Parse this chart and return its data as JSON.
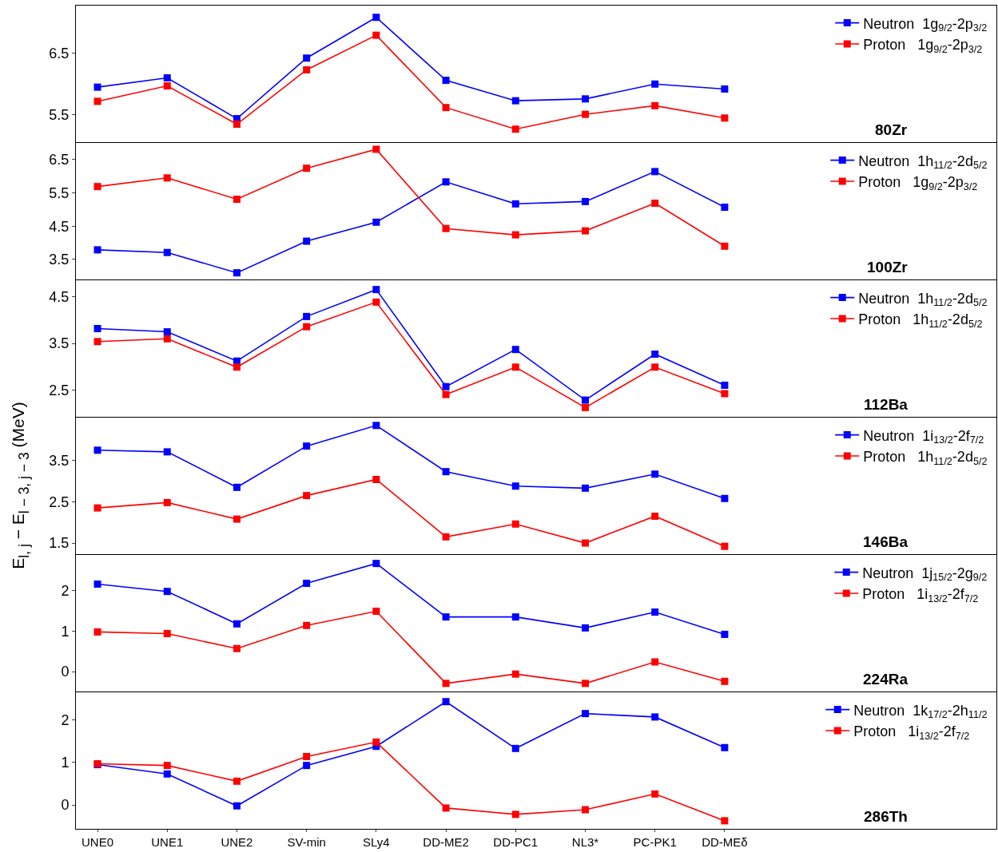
{
  "chart_data": [
    {
      "type": "line",
      "categories": [
        null,
        null,
        null,
        null,
        null,
        null,
        null,
        null,
        null,
        null
      ],
      "ylim": [
        5.06,
        7.27
      ],
      "yticks": [
        5.5,
        6.5
      ],
      "tick_labels": "y",
      "legend": "top right",
      "marker": "square",
      "line_style": "solid",
      "annotations": [
        "80Zr"
      ],
      "series": [
        {
          "name": "Neutron  1g$_{9/2}$-2p$_{3/2}$",
          "color": "#0000ff",
          "values": [
            5.95,
            6.1,
            5.44,
            6.42,
            7.08,
            6.06,
            5.73,
            5.76,
            6.0,
            5.92
          ]
        },
        {
          "name": "Proton   1g$_{9/2}$-2p$_{3/2}$",
          "color": "#ff0000",
          "values": [
            5.72,
            5.97,
            5.35,
            6.23,
            6.79,
            5.62,
            5.27,
            5.51,
            5.65,
            5.45
          ]
        }
      ]
    },
    {
      "type": "line",
      "categories": [
        null,
        null,
        null,
        null,
        null,
        null,
        null,
        null,
        null,
        null
      ],
      "ylim": [
        2.9,
        7.0
      ],
      "yticks": [
        3.5,
        4.5,
        5.5,
        6.5
      ],
      "tick_labels": "y",
      "legend": "top right",
      "marker": "square",
      "line_style": "solid",
      "annotations": [
        "100Zr"
      ],
      "series": [
        {
          "name": "Neutron  1h$_{11/2}$-2d$_{5/2}$",
          "color": "#0000ff",
          "values": [
            3.79,
            3.71,
            3.1,
            4.05,
            4.62,
            5.83,
            5.17,
            5.24,
            6.14,
            5.07
          ]
        },
        {
          "name": "Proton   1g$_{9/2}$-2p$_{3/2}$",
          "color": "#ff0000",
          "values": [
            5.69,
            5.95,
            5.31,
            6.24,
            6.81,
            4.43,
            4.24,
            4.36,
            5.19,
            3.9
          ]
        }
      ]
    },
    {
      "type": "line",
      "categories": [
        null,
        null,
        null,
        null,
        null,
        null,
        null,
        null,
        null,
        null
      ],
      "ylim": [
        1.92,
        4.86
      ],
      "yticks": [
        2.5,
        3.5,
        4.5
      ],
      "tick_labels": "y",
      "legend": "top right",
      "marker": "square",
      "line_style": "solid",
      "annotations": [
        "112Ba"
      ],
      "series": [
        {
          "name": "Neutron  1h$_{11/2}$-2d$_{5/2}$",
          "color": "#0000ff",
          "values": [
            3.82,
            3.75,
            3.12,
            4.08,
            4.66,
            2.57,
            3.37,
            2.28,
            3.27,
            2.6
          ]
        },
        {
          "name": "Proton   1h$_{11/2}$-2d$_{5/2}$",
          "color": "#ff0000",
          "values": [
            3.54,
            3.6,
            2.99,
            3.86,
            4.39,
            2.4,
            2.99,
            2.12,
            2.99,
            2.42
          ]
        }
      ]
    },
    {
      "type": "line",
      "categories": [
        null,
        null,
        null,
        null,
        null,
        null,
        null,
        null,
        null,
        null
      ],
      "ylim": [
        1.23,
        4.54
      ],
      "yticks": [
        1.5,
        2.5,
        3.5
      ],
      "tick_labels": "y",
      "legend": "top right",
      "marker": "square",
      "line_style": "solid",
      "annotations": [
        "146Ba"
      ],
      "ylabel": "E$_{l, j}$ − E$_{l − 3, j − 3}$ (MeV)",
      "series": [
        {
          "name": "Neutron  1i$_{13/2}$-2f$_{7/2}$",
          "color": "#0000ff",
          "values": [
            3.75,
            3.71,
            2.85,
            3.85,
            4.35,
            3.23,
            2.88,
            2.83,
            3.17,
            2.58
          ]
        },
        {
          "name": "Proton   1h$_{11/2}$-2d$_{5/2}$",
          "color": "#ff0000",
          "values": [
            2.35,
            2.48,
            2.08,
            2.65,
            3.04,
            1.65,
            1.96,
            1.5,
            2.15,
            1.42
          ]
        }
      ]
    },
    {
      "type": "line",
      "categories": [
        null,
        null,
        null,
        null,
        null,
        null,
        null,
        null,
        null,
        null
      ],
      "ylim": [
        -0.49,
        2.88
      ],
      "yticks": [
        0,
        1,
        2
      ],
      "tick_labels": "y",
      "legend": "top right",
      "marker": "square",
      "line_style": "solid",
      "annotations": [
        "224Ra"
      ],
      "series": [
        {
          "name": "Neutron  1j$_{15/2}$-2g$_{9/2}$",
          "color": "#0000ff",
          "values": [
            2.16,
            1.98,
            1.18,
            2.18,
            2.67,
            1.35,
            1.35,
            1.08,
            1.47,
            0.92
          ]
        },
        {
          "name": "Proton   1i$_{13/2}$-2f$_{7/2}$",
          "color": "#ff0000",
          "values": [
            0.98,
            0.94,
            0.57,
            1.14,
            1.49,
            -0.29,
            -0.06,
            -0.29,
            0.24,
            -0.24
          ]
        }
      ]
    },
    {
      "type": "line",
      "categories": [
        "UNE0",
        "UNE1",
        "UNE2",
        "SV-min",
        "SLy4",
        "DD-ME2",
        "DD-PC1",
        "NL3*",
        "PC-PK1",
        "DD-MEδ"
      ],
      "ylim": [
        -0.56,
        2.65
      ],
      "yticks": [
        0,
        1,
        2
      ],
      "legend": "top right",
      "marker": "square",
      "line_style": "solid",
      "annotations": [
        "286Th"
      ],
      "series": [
        {
          "name": "Neutron  1k$_{17/2}$-2h$_{11/2}$",
          "color": "#0000ff",
          "values": [
            0.95,
            0.73,
            -0.02,
            0.93,
            1.38,
            2.43,
            1.33,
            2.15,
            2.07,
            1.35
          ]
        },
        {
          "name": "Proton   1i$_{13/2}$-2f$_{7/2}$",
          "color": "#ff0000",
          "values": [
            0.97,
            0.93,
            0.56,
            1.14,
            1.48,
            -0.07,
            -0.22,
            -0.11,
            0.26,
            -0.37
          ]
        }
      ]
    }
  ]
}
